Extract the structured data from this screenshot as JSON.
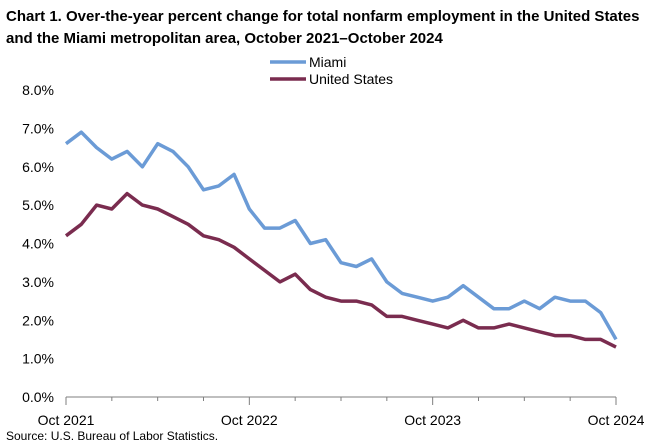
{
  "chart_data": {
    "type": "line",
    "title": "Chart 1. Over-the-year percent change for total nonfarm employment in the United States and the Miami metropolitan area, October 2021–October 2024",
    "source": "Source: U.S. Bureau of Labor Statistics.",
    "x_tick_labels": [
      "Oct 2021",
      "Oct 2022",
      "Oct 2023",
      "Oct 2024"
    ],
    "y_tick_labels": [
      "0.0%",
      "1.0%",
      "2.0%",
      "3.0%",
      "4.0%",
      "5.0%",
      "6.0%",
      "7.0%",
      "8.0%"
    ],
    "ylim": [
      0,
      8
    ],
    "legend_position": "top-center",
    "series": [
      {
        "name": "Miami",
        "color": "#6b9bd6",
        "values": [
          6.6,
          6.9,
          6.5,
          6.2,
          6.4,
          6.0,
          6.6,
          6.4,
          6.0,
          5.4,
          5.5,
          5.8,
          4.9,
          4.4,
          4.4,
          4.6,
          4.0,
          4.1,
          3.5,
          3.4,
          3.6,
          3.0,
          2.7,
          2.6,
          2.5,
          2.6,
          2.9,
          2.6,
          2.3,
          2.3,
          2.5,
          2.3,
          2.6,
          2.5,
          2.5,
          2.2,
          1.5
        ]
      },
      {
        "name": "United States",
        "color": "#7a2c4f",
        "values": [
          4.2,
          4.5,
          5.0,
          4.9,
          5.3,
          5.0,
          4.9,
          4.7,
          4.5,
          4.2,
          4.1,
          3.9,
          3.6,
          3.3,
          3.0,
          3.2,
          2.8,
          2.6,
          2.5,
          2.5,
          2.4,
          2.1,
          2.1,
          2.0,
          1.9,
          1.8,
          2.0,
          1.8,
          1.8,
          1.9,
          1.8,
          1.7,
          1.6,
          1.6,
          1.5,
          1.5,
          1.3
        ]
      }
    ]
  }
}
